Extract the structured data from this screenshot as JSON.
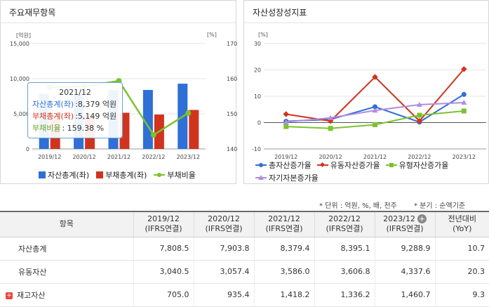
{
  "left": {
    "title": "주요재무항목",
    "unit_left": "[억원]",
    "unit_right": "[%]",
    "legend": [
      {
        "label": "자산총계(좌)",
        "color": "#2f6fd6"
      },
      {
        "label": "부채총계(좌)",
        "color": "#d0341e"
      },
      {
        "label": "부채비율",
        "color": "#7cc22f"
      }
    ],
    "tooltip": {
      "date": "2021/12",
      "rows": [
        {
          "label": "자산총계(좌)",
          "value": ":8,379 억원",
          "color": "#2f6fd6"
        },
        {
          "label": "부채총계(좌)",
          "value": ":5,149 억원",
          "color": "#d0341e"
        },
        {
          "label": "부채비율",
          "value": ":  159.38 %",
          "color": "#6aa22a"
        }
      ]
    }
  },
  "right": {
    "title": "자산성장성지표",
    "unit": "[%]",
    "legend": [
      {
        "label": "총자산증가율",
        "color": "#2f6fd6",
        "marker": "circle"
      },
      {
        "label": "유동자산증가율",
        "color": "#d0341e",
        "marker": "diamond"
      },
      {
        "label": "유형자산증가율",
        "color": "#7cc22f",
        "marker": "square"
      },
      {
        "label": "자기자본증가율",
        "color": "#b48be0",
        "marker": "tri"
      }
    ]
  },
  "chart_data": [
    {
      "type": "bar",
      "title": "주요재무항목",
      "categories": [
        "2019/12",
        "2020/12",
        "2021/12",
        "2022/12",
        "2023/12"
      ],
      "yticks_left": [
        "0",
        "5,000",
        "10,000",
        "15,000"
      ],
      "yticks_right": [
        "140",
        "150",
        "160",
        "170"
      ],
      "ylim_left": [
        0,
        15000
      ],
      "ylim_right": [
        140,
        170
      ],
      "series": [
        {
          "name": "자산총계(좌)",
          "axis": "left",
          "kind": "bar",
          "color": "#2f6fd6",
          "values": [
            7808.5,
            7903.8,
            8379.4,
            8395.1,
            9288.9
          ]
        },
        {
          "name": "부채총계(좌)",
          "axis": "left",
          "kind": "bar",
          "color": "#d0341e",
          "values": [
            4750,
            4850,
            5149,
            4900,
            5550
          ]
        },
        {
          "name": "부채비율",
          "axis": "right",
          "kind": "line",
          "color": "#7cc22f",
          "values": [
            157.5,
            157.8,
            159.38,
            144,
            150.2
          ]
        }
      ]
    },
    {
      "type": "line",
      "title": "자산성장성지표",
      "categories": [
        "2019/12",
        "2020/12",
        "2021/12",
        "2022/12",
        "2023/12"
      ],
      "yticks": [
        "-10",
        "0",
        "10",
        "20",
        "30"
      ],
      "ylim": [
        -10,
        30
      ],
      "series": [
        {
          "name": "총자산증가율",
          "color": "#2f6fd6",
          "marker": "circle",
          "values": [
            0.5,
            1.2,
            6.0,
            0.2,
            10.7
          ]
        },
        {
          "name": "유동자산증가율",
          "color": "#d0341e",
          "marker": "diamond",
          "values": [
            3.2,
            0.6,
            17.3,
            0.6,
            20.3
          ]
        },
        {
          "name": "유형자산증가율",
          "color": "#7cc22f",
          "marker": "square",
          "values": [
            -1.5,
            -2.2,
            -0.8,
            2.8,
            4.4
          ]
        },
        {
          "name": "자기자본증가율",
          "color": "#b48be0",
          "marker": "tri",
          "values": [
            0.2,
            1.8,
            4.6,
            6.8,
            7.6
          ]
        }
      ]
    }
  ],
  "notes": {
    "unit_note": "* 단위 : 억원, %, 배, 천주",
    "period_note": "* 분기 : 순액기준"
  },
  "table": {
    "header_item": "항목",
    "columns": [
      {
        "line1": "2019/12",
        "line2": "(IFRS연결)"
      },
      {
        "line1": "2020/12",
        "line2": "(IFRS연결)"
      },
      {
        "line1": "2021/12",
        "line2": "(IFRS연결)"
      },
      {
        "line1": "2022/12",
        "line2": "(IFRS연결)"
      },
      {
        "line1": "2023/12",
        "line2": "(IFRS연결)"
      }
    ],
    "add_symbol": "+",
    "yoy_header_line1": "전년대비",
    "yoy_header_line2": "(YoY)",
    "rows": [
      {
        "label": "자산총계",
        "expandable": false,
        "values": [
          "7,808.5",
          "7,903.8",
          "8,379.4",
          "8,395.1",
          "9,288.9"
        ],
        "yoy": "10.7"
      },
      {
        "label": "유동자산",
        "expandable": false,
        "values": [
          "3,040.5",
          "3,057.4",
          "3,586.0",
          "3,606.8",
          "4,337.6"
        ],
        "yoy": "20.3"
      },
      {
        "label": "재고자산",
        "expandable": true,
        "expand_symbol": "+",
        "values": [
          "705.0",
          "935.4",
          "1,418.2",
          "1,336.2",
          "1,460.7"
        ],
        "yoy": "9.3"
      }
    ]
  }
}
